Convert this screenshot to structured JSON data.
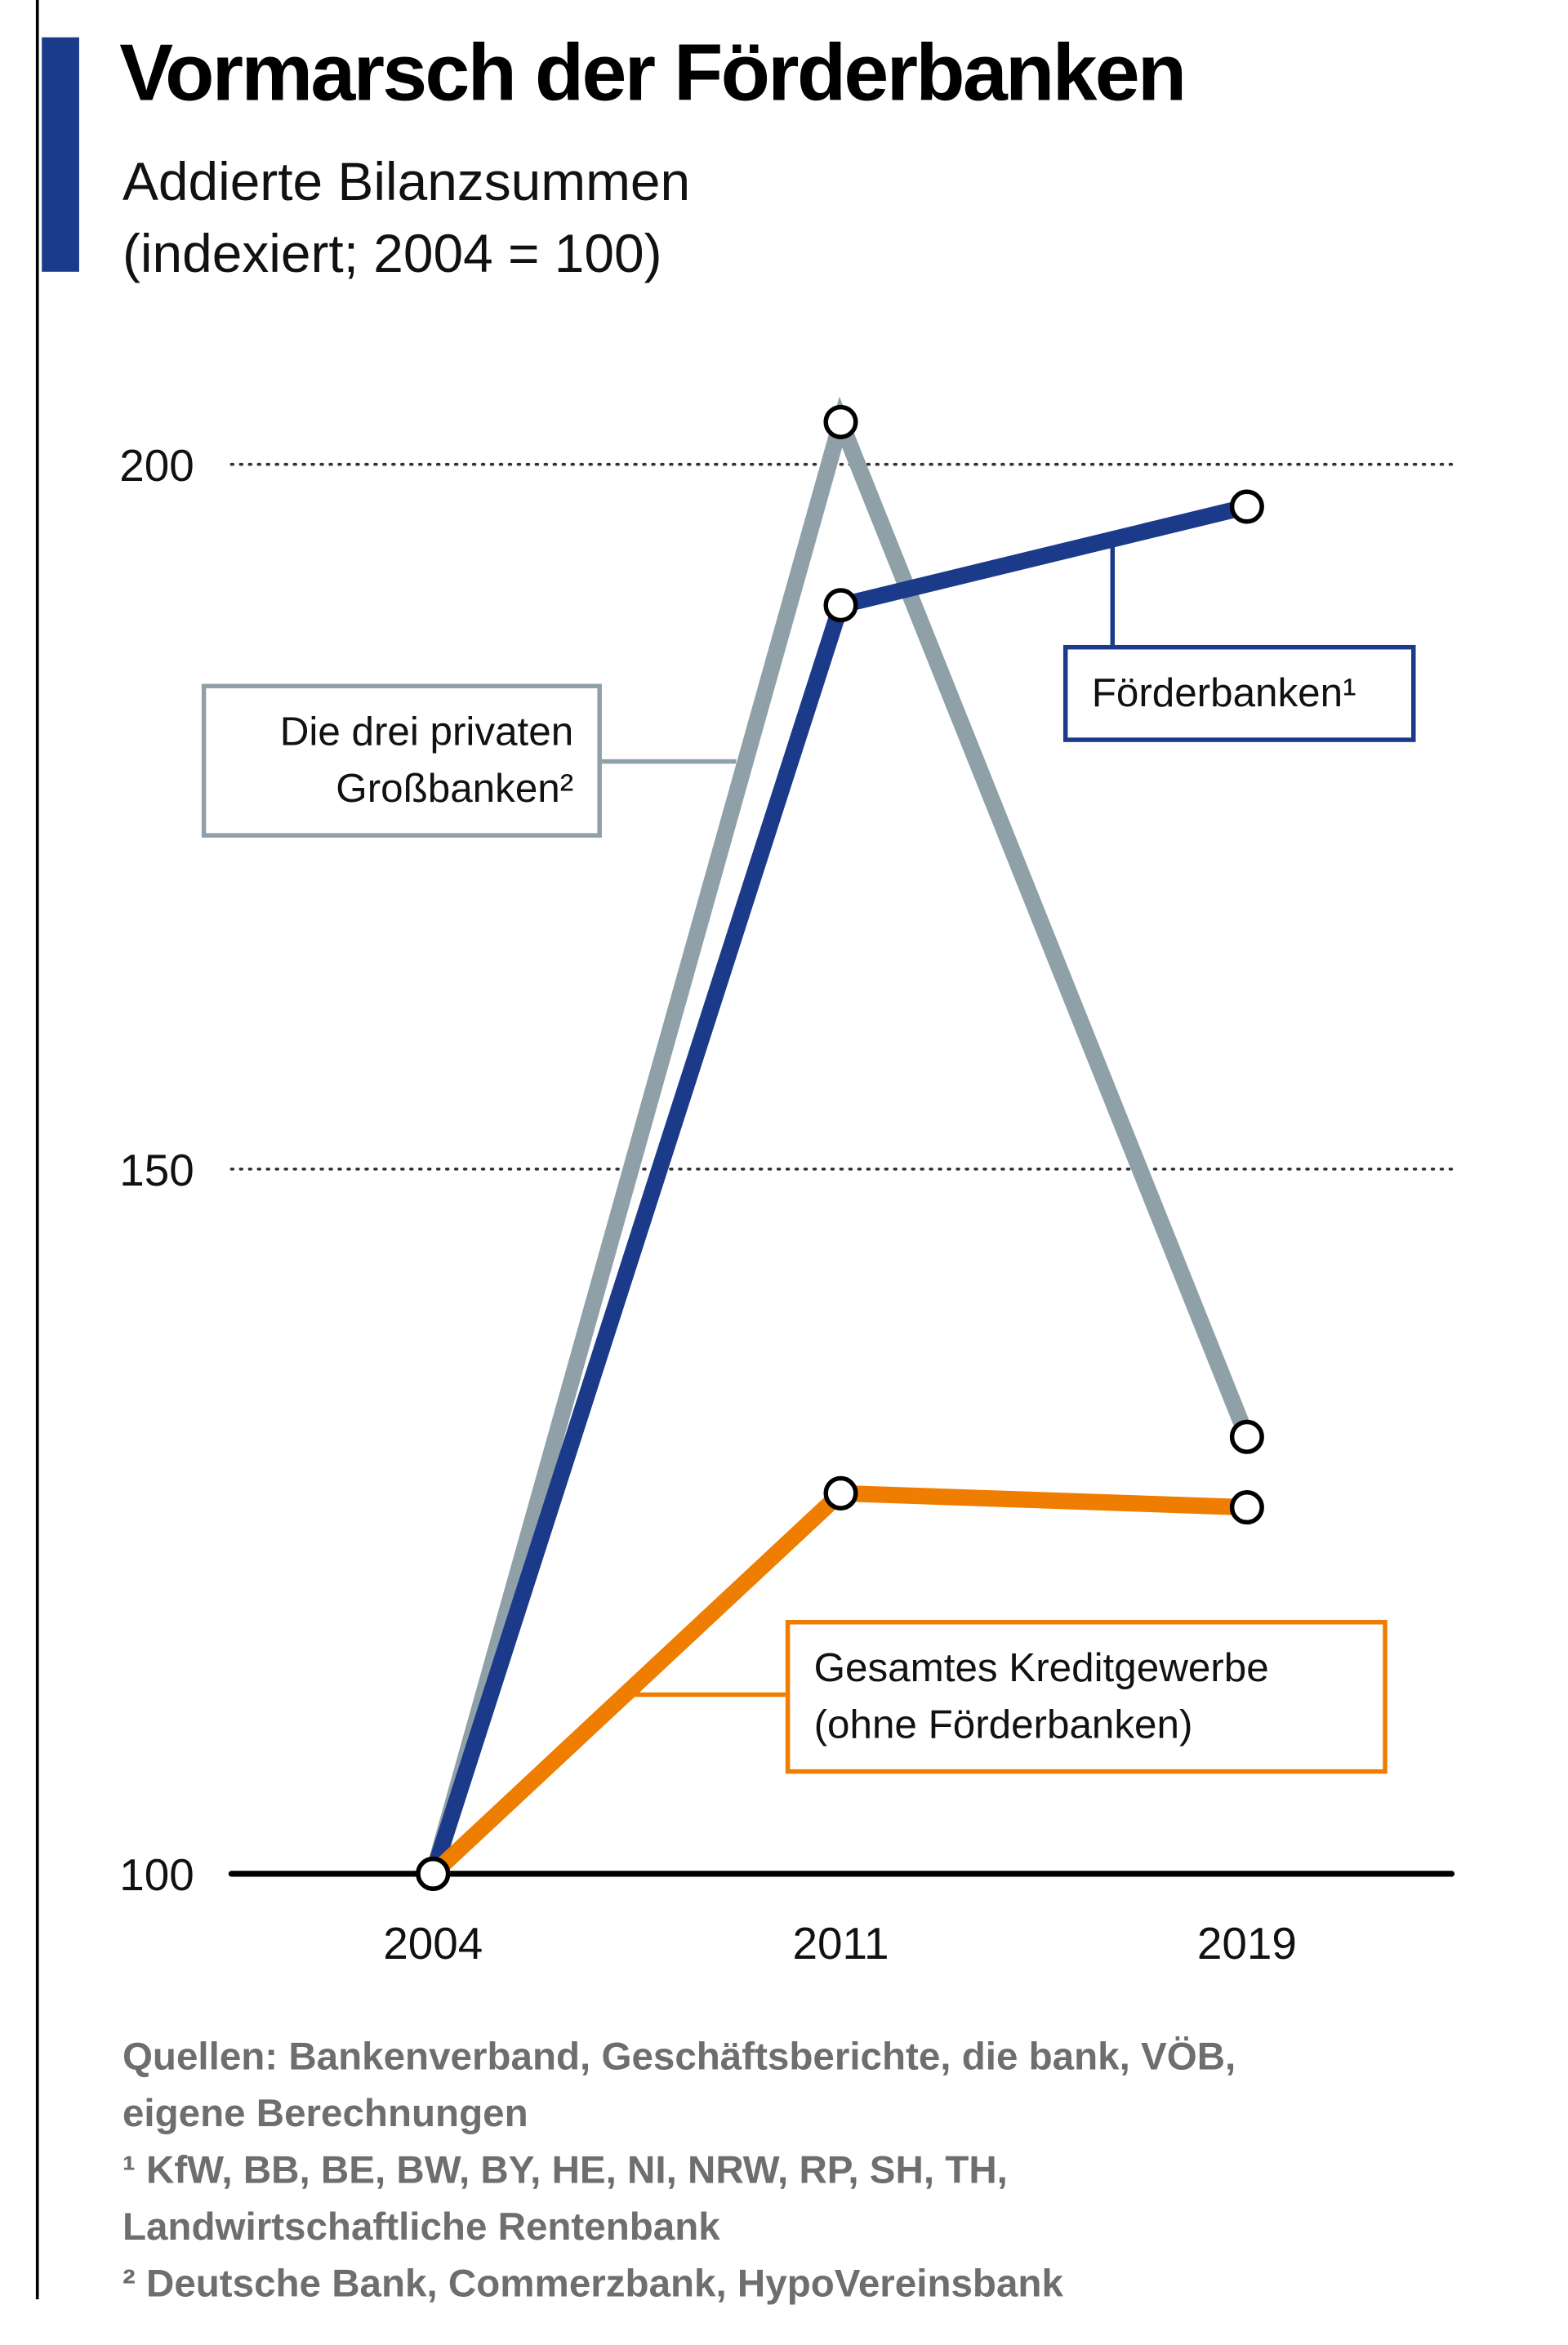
{
  "chart_data": {
    "type": "line",
    "title": "Vormarsch der Förderbanken",
    "subtitle": "Addierte Bilanzsummen (indexiert; 2004 = 100)",
    "categories": [
      "2004",
      "2011",
      "2019"
    ],
    "series": [
      {
        "name": "Die drei privaten Großbanken²",
        "color": "#8fa0a8",
        "values": [
          100,
          203,
          131
        ]
      },
      {
        "name": "Förderbanken¹",
        "color": "#1b3a8a",
        "values": [
          100,
          190,
          197
        ]
      },
      {
        "name": "Gesamtes Kreditgewerbe (ohne Förderbanken)",
        "color": "#ef7d00",
        "values": [
          100,
          127,
          126
        ]
      }
    ],
    "ylim": [
      100,
      205
    ],
    "yticks": [
      100,
      150,
      200
    ],
    "grid": true,
    "notes": [
      "Quellen: Bankenverband, Geschäftsberichte, die bank, VÖB, eigene Berechnungen",
      "¹ KfW, BB, BE, BW, BY, HE, NI, NRW, RP, SH, TH, Landwirtschaftliche Rentenbank",
      "² Deutsche Bank, Commerzbank, HypoVereinsbank"
    ]
  }
}
